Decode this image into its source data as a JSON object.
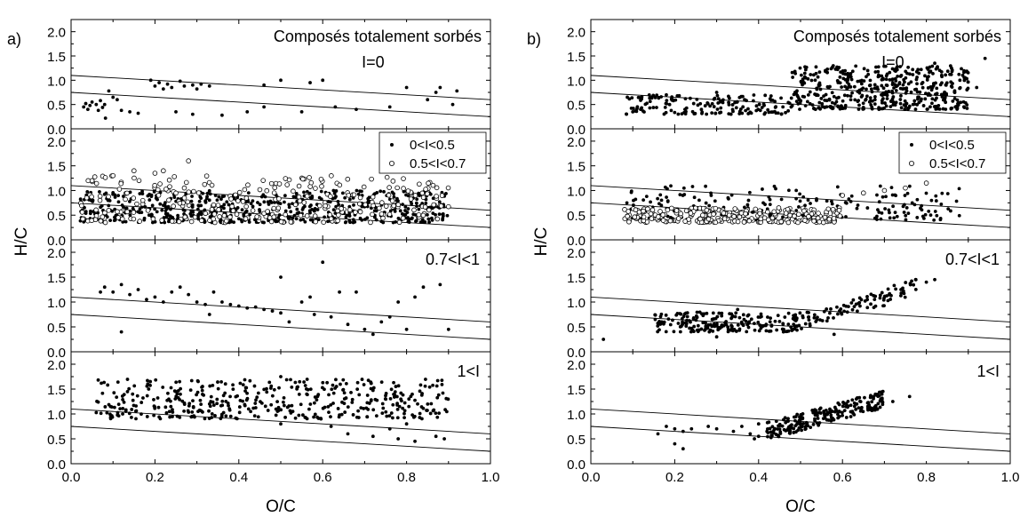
{
  "figure": {
    "labels": [
      "a)",
      "b)"
    ],
    "xlabel": "O/C",
    "ylabel": "H/C",
    "ref_lines": [
      {
        "intercept": 1.1,
        "slope": -0.5
      },
      {
        "intercept": 0.75,
        "slope": -0.5
      }
    ]
  },
  "chart_data": [
    {
      "type": "scatter",
      "panel": "a",
      "row": 1,
      "xlim": [
        0,
        1
      ],
      "ylim": [
        0,
        2.25
      ],
      "title": "Composés totalement sorbés",
      "annotation": "I=0",
      "yticks": [
        "0.0",
        "0.5",
        "1.0",
        "1.5",
        "2.0"
      ],
      "xticks": [],
      "series": [
        {
          "marker": "filled",
          "points": [
            [
              0.03,
              0.45
            ],
            [
              0.035,
              0.52
            ],
            [
              0.04,
              0.4
            ],
            [
              0.045,
              0.48
            ],
            [
              0.05,
              0.55
            ],
            [
              0.06,
              0.5
            ],
            [
              0.065,
              0.38
            ],
            [
              0.07,
              0.58
            ],
            [
              0.075,
              0.44
            ],
            [
              0.08,
              0.5
            ],
            [
              0.082,
              0.22
            ],
            [
              0.09,
              0.78
            ],
            [
              0.1,
              0.65
            ],
            [
              0.11,
              0.6
            ],
            [
              0.12,
              0.38
            ],
            [
              0.14,
              0.35
            ],
            [
              0.16,
              0.32
            ],
            [
              0.19,
              1.0
            ],
            [
              0.2,
              0.88
            ],
            [
              0.21,
              0.95
            ],
            [
              0.22,
              0.82
            ],
            [
              0.23,
              0.92
            ],
            [
              0.24,
              0.85
            ],
            [
              0.26,
              0.98
            ],
            [
              0.27,
              0.88
            ],
            [
              0.29,
              0.9
            ],
            [
              0.3,
              0.82
            ],
            [
              0.31,
              0.92
            ],
            [
              0.33,
              0.88
            ],
            [
              0.25,
              0.35
            ],
            [
              0.29,
              0.3
            ],
            [
              0.36,
              0.28
            ],
            [
              0.42,
              0.35
            ],
            [
              0.46,
              0.45
            ],
            [
              0.46,
              0.9
            ],
            [
              0.5,
              1.0
            ],
            [
              0.55,
              0.35
            ],
            [
              0.57,
              0.95
            ],
            [
              0.6,
              1.0
            ],
            [
              0.63,
              0.45
            ],
            [
              0.68,
              0.4
            ],
            [
              0.76,
              0.45
            ],
            [
              0.8,
              0.85
            ],
            [
              0.85,
              0.6
            ],
            [
              0.87,
              0.75
            ],
            [
              0.88,
              0.85
            ],
            [
              0.91,
              0.5
            ],
            [
              0.92,
              0.78
            ]
          ]
        }
      ]
    },
    {
      "type": "scatter",
      "panel": "a",
      "row": 2,
      "xlim": [
        0,
        1
      ],
      "ylim": [
        0,
        2.25
      ],
      "legend": [
        "0<I<0.5",
        "0.5<I<0.7"
      ],
      "yticks": [
        "0.0",
        "0.5",
        "1.0",
        "1.5",
        "2.0"
      ],
      "xticks": [],
      "series": [
        {
          "name": "0<I<0.5",
          "marker": "filled",
          "generator": "dense",
          "xrange": [
            0.02,
            0.9
          ],
          "yrange": [
            0.35,
            1.0
          ],
          "n": 600
        },
        {
          "name": "0.5<I<0.7",
          "marker": "open",
          "generator": "dense",
          "xrange": [
            0.02,
            0.9
          ],
          "yrange": [
            0.35,
            1.3
          ],
          "n": 280,
          "extra": [
            [
              0.1,
              1.3
            ],
            [
              0.15,
              1.4
            ],
            [
              0.2,
              1.35
            ],
            [
              0.22,
              1.4
            ],
            [
              0.28,
              1.6
            ],
            [
              0.05,
              1.2
            ]
          ]
        }
      ]
    },
    {
      "type": "scatter",
      "panel": "a",
      "row": 3,
      "xlim": [
        0,
        1
      ],
      "ylim": [
        0,
        2.25
      ],
      "annotation": "0.7<I<1",
      "yticks": [
        "0.0",
        "0.5",
        "1.0",
        "1.5",
        "2.0"
      ],
      "xticks": [],
      "series": [
        {
          "marker": "filled",
          "points": [
            [
              0.07,
              1.2
            ],
            [
              0.08,
              1.3
            ],
            [
              0.1,
              1.2
            ],
            [
              0.12,
              1.35
            ],
            [
              0.14,
              1.15
            ],
            [
              0.16,
              1.25
            ],
            [
              0.18,
              1.05
            ],
            [
              0.2,
              1.1
            ],
            [
              0.22,
              1.0
            ],
            [
              0.24,
              1.2
            ],
            [
              0.26,
              1.3
            ],
            [
              0.28,
              1.15
            ],
            [
              0.3,
              1.0
            ],
            [
              0.32,
              0.95
            ],
            [
              0.33,
              2.3
            ],
            [
              0.33,
              0.75
            ],
            [
              0.34,
              1.2
            ],
            [
              0.36,
              1.0
            ],
            [
              0.38,
              0.95
            ],
            [
              0.4,
              0.92
            ],
            [
              0.42,
              0.88
            ],
            [
              0.44,
              0.9
            ],
            [
              0.46,
              0.85
            ],
            [
              0.48,
              0.82
            ],
            [
              0.5,
              0.78
            ],
            [
              0.5,
              1.5
            ],
            [
              0.52,
              0.6
            ],
            [
              0.55,
              1.0
            ],
            [
              0.57,
              1.1
            ],
            [
              0.58,
              0.75
            ],
            [
              0.6,
              1.8
            ],
            [
              0.62,
              0.7
            ],
            [
              0.64,
              1.2
            ],
            [
              0.66,
              0.55
            ],
            [
              0.68,
              1.2
            ],
            [
              0.7,
              0.45
            ],
            [
              0.72,
              0.35
            ],
            [
              0.74,
              0.6
            ],
            [
              0.76,
              0.7
            ],
            [
              0.78,
              1.0
            ],
            [
              0.8,
              0.45
            ],
            [
              0.82,
              1.1
            ],
            [
              0.84,
              1.3
            ],
            [
              0.88,
              1.35
            ],
            [
              0.12,
              0.4
            ],
            [
              0.9,
              0.45
            ]
          ]
        }
      ]
    },
    {
      "type": "scatter",
      "panel": "a",
      "row": 4,
      "xlim": [
        0,
        1
      ],
      "ylim": [
        0,
        2.25
      ],
      "annotation": "1<I",
      "yticks": [
        "0.0",
        "0.5",
        "1.0",
        "1.5",
        "2.0"
      ],
      "xticks": [
        "0.0",
        "0.2",
        "0.4",
        "0.6",
        "0.8",
        "1.0"
      ],
      "series": [
        {
          "marker": "filled",
          "generator": "dense",
          "xrange": [
            0.06,
            0.9
          ],
          "yrange": [
            0.9,
            1.7
          ],
          "n": 420,
          "extra": [
            [
              0.5,
              0.8
            ],
            [
              0.5,
              1.75
            ],
            [
              0.62,
              0.75
            ],
            [
              0.66,
              0.6
            ],
            [
              0.72,
              0.55
            ],
            [
              0.78,
              0.5
            ],
            [
              0.82,
              0.45
            ],
            [
              0.87,
              0.55
            ],
            [
              0.89,
              0.5
            ],
            [
              0.76,
              0.7
            ],
            [
              0.8,
              0.8
            ]
          ]
        }
      ]
    },
    {
      "type": "scatter",
      "panel": "b",
      "row": 1,
      "xlim": [
        0,
        1
      ],
      "ylim": [
        0,
        2.25
      ],
      "title": "Composés totalement sorbés",
      "annotation": "I=0",
      "yticks": [
        "0.0",
        "0.5",
        "1.0",
        "1.5",
        "2.0"
      ],
      "xticks": [],
      "series": [
        {
          "marker": "filled",
          "generator": "dense",
          "xrange": [
            0.08,
            0.48
          ],
          "yrange": [
            0.3,
            0.7
          ],
          "n": 160,
          "extra": [
            [
              0.3,
              0.75
            ],
            [
              0.18,
              0.7
            ],
            [
              0.1,
              0.35
            ]
          ]
        },
        {
          "marker": "filled",
          "generator": "dense",
          "xrange": [
            0.48,
            0.9
          ],
          "yrange": [
            0.4,
            1.3
          ],
          "n": 460,
          "extra": [
            [
              0.94,
              1.45
            ],
            [
              0.88,
              1.0
            ],
            [
              0.92,
              0.85
            ],
            [
              0.82,
              1.35
            ],
            [
              0.86,
              1.25
            ]
          ]
        }
      ]
    },
    {
      "type": "scatter",
      "panel": "b",
      "row": 2,
      "xlim": [
        0,
        1
      ],
      "ylim": [
        0,
        2.25
      ],
      "legend": [
        "0<I<0.5",
        "0.5<I<0.7"
      ],
      "yticks": [
        "0.0",
        "0.5",
        "1.0",
        "1.5",
        "2.0"
      ],
      "xticks": [],
      "series": [
        {
          "name": "0<I<0.5",
          "marker": "filled",
          "generator": "dense",
          "xrange": [
            0.08,
            0.88
          ],
          "yrange": [
            0.4,
            1.1
          ],
          "n": 200
        },
        {
          "name": "0.5<I<0.7",
          "marker": "open",
          "generator": "dense",
          "xrange": [
            0.08,
            0.6
          ],
          "yrange": [
            0.35,
            0.65
          ],
          "n": 260,
          "extra": [
            [
              0.6,
              0.9
            ],
            [
              0.65,
              0.95
            ],
            [
              0.7,
              1.0
            ],
            [
              0.75,
              1.05
            ],
            [
              0.8,
              1.15
            ]
          ]
        }
      ]
    },
    {
      "type": "scatter",
      "panel": "b",
      "row": 3,
      "xlim": [
        0,
        1
      ],
      "ylim": [
        0,
        2.25
      ],
      "annotation": "0.7<I<1",
      "yticks": [
        "0.0",
        "0.5",
        "1.0",
        "1.5",
        "2.0"
      ],
      "xticks": [],
      "series": [
        {
          "marker": "filled",
          "generator": "dense",
          "xrange": [
            0.15,
            0.5
          ],
          "yrange": [
            0.4,
            0.8
          ],
          "n": 200,
          "extra": [
            [
              0.03,
              0.25
            ],
            [
              0.3,
              0.3
            ],
            [
              0.35,
              0.85
            ]
          ]
        },
        {
          "marker": "filled",
          "generator": "trend",
          "xrange": [
            0.5,
            0.78
          ],
          "yrange": [
            0.6,
            1.3
          ],
          "n": 90,
          "extra": [
            [
              0.8,
              1.4
            ],
            [
              0.82,
              1.45
            ],
            [
              0.58,
              0.35
            ]
          ]
        }
      ]
    },
    {
      "type": "scatter",
      "panel": "b",
      "row": 4,
      "xlim": [
        0,
        1
      ],
      "ylim": [
        0,
        2.25
      ],
      "annotation": "1<I",
      "yticks": [
        "0.0",
        "0.5",
        "1.0",
        "1.5",
        "2.0"
      ],
      "xticks": [
        "0.0",
        "0.2",
        "0.4",
        "0.6",
        "0.8",
        "1.0"
      ],
      "series": [
        {
          "marker": "filled",
          "points": [
            [
              0.16,
              0.6
            ],
            [
              0.18,
              0.75
            ],
            [
              0.2,
              0.7
            ],
            [
              0.2,
              0.4
            ],
            [
              0.22,
              0.3
            ],
            [
              0.22,
              0.65
            ],
            [
              0.24,
              0.7
            ],
            [
              0.28,
              0.75
            ],
            [
              0.3,
              0.7
            ],
            [
              0.34,
              0.65
            ],
            [
              0.36,
              0.75
            ],
            [
              0.38,
              0.6
            ],
            [
              0.39,
              0.5
            ],
            [
              0.4,
              0.55
            ],
            [
              0.42,
              0.65
            ],
            [
              0.4,
              0.8
            ],
            [
              0.76,
              1.35
            ],
            [
              0.72,
              1.25
            ]
          ]
        },
        {
          "marker": "filled",
          "generator": "trend",
          "xrange": [
            0.42,
            0.7
          ],
          "yrange": [
            0.65,
            1.3
          ],
          "n": 220
        }
      ]
    }
  ]
}
